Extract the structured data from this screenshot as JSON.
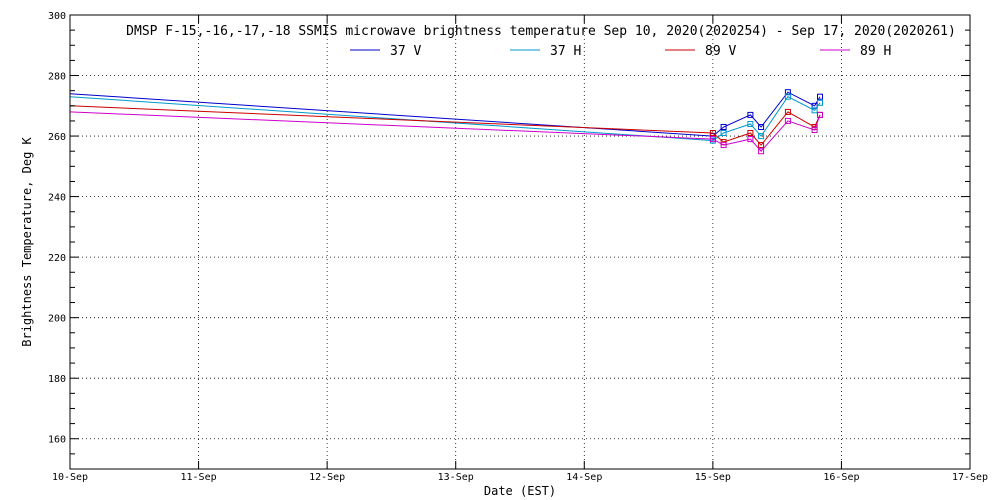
{
  "chart_data": {
    "type": "line",
    "title": "DMSP F-15,-16,-17,-18 SSMIS microwave brightness temperature Sep 10, 2020(2020254) - Sep 17, 2020(2020261)",
    "xlabel": "Date (EST)",
    "ylabel": "Brightness Temperature, Deg K",
    "xlim": [
      "2020-09-10 00:00",
      "2020-09-17 00:00"
    ],
    "ylim": [
      150,
      300
    ],
    "x_ticks": [
      "10-Sep",
      "11-Sep",
      "12-Sep",
      "13-Sep",
      "14-Sep",
      "15-Sep",
      "16-Sep",
      "17-Sep"
    ],
    "y_ticks": [
      160,
      180,
      200,
      220,
      240,
      260,
      280,
      300
    ],
    "grid": true,
    "legend_position": "top",
    "series": [
      {
        "name": "37 V",
        "color": "#0000cc",
        "points": [
          {
            "x": "2020-09-10 00:00",
            "y": 274.0,
            "marker": false
          },
          {
            "x": "2020-09-15 00:00",
            "y": 260.0,
            "marker": true
          },
          {
            "x": "2020-09-15 02:00",
            "y": 263.0,
            "marker": true
          },
          {
            "x": "2020-09-15 07:00",
            "y": 267.0,
            "marker": true
          },
          {
            "x": "2020-09-15 09:00",
            "y": 263.0,
            "marker": true
          },
          {
            "x": "2020-09-15 14:00",
            "y": 274.5,
            "marker": true
          },
          {
            "x": "2020-09-15 19:00",
            "y": 270.0,
            "marker": true
          },
          {
            "x": "2020-09-15 20:00",
            "y": 273.0,
            "marker": true
          }
        ]
      },
      {
        "name": "37 H",
        "color": "#0099cc",
        "points": [
          {
            "x": "2020-09-10 00:00",
            "y": 273.0,
            "marker": false
          },
          {
            "x": "2020-09-15 00:00",
            "y": 258.5,
            "marker": true
          },
          {
            "x": "2020-09-15 02:00",
            "y": 261.0,
            "marker": true
          },
          {
            "x": "2020-09-15 07:00",
            "y": 264.0,
            "marker": true
          },
          {
            "x": "2020-09-15 09:00",
            "y": 260.0,
            "marker": true
          },
          {
            "x": "2020-09-15 14:00",
            "y": 273.0,
            "marker": true
          },
          {
            "x": "2020-09-15 19:00",
            "y": 268.5,
            "marker": true
          },
          {
            "x": "2020-09-15 20:00",
            "y": 271.0,
            "marker": true
          }
        ]
      },
      {
        "name": "89 V",
        "color": "#cc0000",
        "points": [
          {
            "x": "2020-09-10 00:00",
            "y": 270.0,
            "marker": false
          },
          {
            "x": "2020-09-15 00:00",
            "y": 261.0,
            "marker": true
          },
          {
            "x": "2020-09-15 02:00",
            "y": 258.0,
            "marker": true
          },
          {
            "x": "2020-09-15 07:00",
            "y": 261.0,
            "marker": true
          },
          {
            "x": "2020-09-15 09:00",
            "y": 257.0,
            "marker": true
          },
          {
            "x": "2020-09-15 14:00",
            "y": 268.0,
            "marker": true
          },
          {
            "x": "2020-09-15 19:00",
            "y": 263.0,
            "marker": true
          },
          {
            "x": "2020-09-15 20:00",
            "y": 267.0,
            "marker": true
          }
        ]
      },
      {
        "name": "89 H",
        "color": "#cc00cc",
        "points": [
          {
            "x": "2020-09-10 00:00",
            "y": 268.0,
            "marker": false
          },
          {
            "x": "2020-09-15 00:00",
            "y": 259.0,
            "marker": true
          },
          {
            "x": "2020-09-15 02:00",
            "y": 257.0,
            "marker": true
          },
          {
            "x": "2020-09-15 07:00",
            "y": 259.0,
            "marker": true
          },
          {
            "x": "2020-09-15 09:00",
            "y": 255.0,
            "marker": true
          },
          {
            "x": "2020-09-15 14:00",
            "y": 265.0,
            "marker": true
          },
          {
            "x": "2020-09-15 19:00",
            "y": 262.0,
            "marker": true
          },
          {
            "x": "2020-09-15 20:00",
            "y": 267.0,
            "marker": true
          }
        ]
      }
    ]
  }
}
